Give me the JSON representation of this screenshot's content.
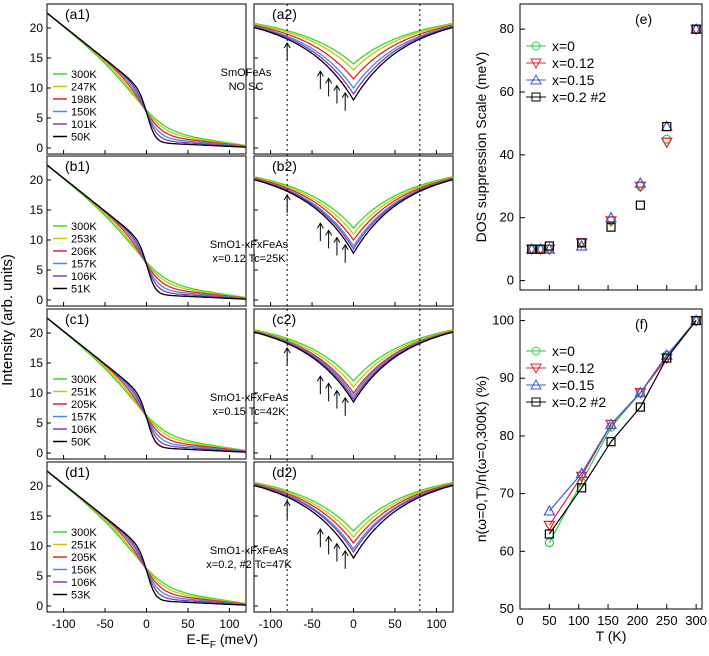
{
  "figure": {
    "y_axis_label": "Intensity (arb. units)",
    "x_axis_label_main": "E-E",
    "x_axis_label_sub": "F",
    "x_axis_label_unit": " (meV)"
  },
  "chart_data": [
    {
      "type": "line",
      "panel": "a1",
      "label": "(a1)",
      "temps": [
        "300K",
        "247K",
        "198K",
        "150K",
        "101K",
        "50K"
      ],
      "sample": [
        "SmOFeAs",
        "NO SC"
      ],
      "ylim": [
        -1,
        24
      ],
      "xlim": [
        -120,
        120
      ],
      "yticks": [
        0,
        5,
        10,
        15,
        20
      ],
      "xticks": [
        -100,
        -50,
        0,
        50,
        100
      ]
    },
    {
      "type": "line",
      "panel": "a2",
      "label": "(a2)",
      "ylim": [
        -1,
        24
      ],
      "xlim": [
        -120,
        120
      ],
      "min_values": [
        14,
        13,
        11.5,
        10,
        9,
        8
      ],
      "arrows_x": [
        -80,
        -40,
        -30,
        -20,
        -10
      ]
    },
    {
      "type": "line",
      "panel": "b1",
      "label": "(b1)",
      "temps": [
        "300K",
        "253K",
        "206K",
        "157K",
        "106K",
        "51K"
      ],
      "sample": [
        "SmO1-xFxFeAs",
        "x=0.12 Tc=25K"
      ],
      "ylim": [
        -1,
        24
      ],
      "xlim": [
        -120,
        120
      ],
      "yticks": [
        0,
        5,
        10,
        15,
        20
      ],
      "xticks": [
        -100,
        -50,
        0,
        50,
        100
      ]
    },
    {
      "type": "line",
      "panel": "b2",
      "label": "(b2)",
      "ylim": [
        -1,
        24
      ],
      "xlim": [
        -120,
        120
      ],
      "min_values": [
        12,
        11,
        10,
        9,
        8.5,
        7.8
      ],
      "arrows_x": [
        -80,
        -40,
        -30,
        -20,
        -10
      ]
    },
    {
      "type": "line",
      "panel": "c1",
      "label": "(c1)",
      "temps": [
        "300K",
        "251K",
        "205K",
        "157K",
        "106K",
        "50K"
      ],
      "sample": [
        "SmO1-xFxFeAs",
        "x=0.15 Tc=42K"
      ],
      "ylim": [
        -1,
        24
      ],
      "xlim": [
        -120,
        120
      ],
      "yticks": [
        0,
        5,
        10,
        15,
        20
      ],
      "xticks": [
        -100,
        -50,
        0,
        50,
        100
      ]
    },
    {
      "type": "line",
      "panel": "c2",
      "label": "(c2)",
      "ylim": [
        -1,
        24
      ],
      "xlim": [
        -120,
        120
      ],
      "min_values": [
        12,
        11,
        10,
        9.5,
        9,
        8.5
      ],
      "arrows_x": [
        -80,
        -40,
        -30,
        -20,
        -10
      ]
    },
    {
      "type": "line",
      "panel": "d1",
      "label": "(d1)",
      "temps": [
        "300K",
        "251K",
        "205K",
        "156K",
        "106K",
        "53K"
      ],
      "sample": [
        "SmO1-xFxFeAs",
        "x=0.2, #2 Tc=47K"
      ],
      "ylim": [
        -1,
        24
      ],
      "xlim": [
        -120,
        120
      ],
      "yticks": [
        0,
        5,
        10,
        15,
        20
      ],
      "xticks": [
        -100,
        -50,
        0,
        50,
        100
      ]
    },
    {
      "type": "line",
      "panel": "d2",
      "label": "(d2)",
      "ylim": [
        -1,
        24
      ],
      "xlim": [
        -120,
        120
      ],
      "min_values": [
        12.5,
        11.5,
        10.5,
        9.5,
        9,
        8
      ],
      "arrows_x": [
        -80,
        -40,
        -30,
        -20,
        -10
      ]
    },
    {
      "type": "scatter",
      "panel": "e",
      "label": "(e)",
      "title": "",
      "xlabel": "T (K)",
      "ylabel": "DOS suppression Scale (meV)",
      "xlim": [
        0,
        310
      ],
      "ylim": [
        -3,
        88
      ],
      "xticks": [
        0,
        50,
        100,
        150,
        200,
        250,
        300
      ],
      "yticks": [
        0,
        20,
        40,
        60,
        80
      ],
      "series": [
        {
          "name": "x=0",
          "marker": "circle",
          "color": "#2ecc40",
          "x": [
            20,
            35,
            50,
            105,
            155,
            205,
            250,
            300
          ],
          "y": [
            10,
            10,
            10,
            12,
            19,
            30,
            45,
            80
          ]
        },
        {
          "name": "x=0.12",
          "marker": "triangle-down",
          "color": "#e8202a",
          "x": [
            20,
            35,
            50,
            105,
            155,
            205,
            250,
            300
          ],
          "y": [
            10,
            10,
            10,
            12,
            19,
            30,
            44,
            80
          ]
        },
        {
          "name": "x=0.15",
          "marker": "triangle-up",
          "color": "#3e5bd9",
          "x": [
            20,
            35,
            50,
            105,
            155,
            205,
            250,
            300
          ],
          "y": [
            10,
            10,
            10,
            11,
            20,
            31,
            49,
            80
          ]
        },
        {
          "name": "x=0.2 #2",
          "marker": "square",
          "color": "#000000",
          "x": [
            20,
            35,
            50,
            105,
            155,
            205,
            250,
            300
          ],
          "y": [
            10,
            10,
            11,
            12,
            17,
            24,
            49,
            80
          ]
        }
      ]
    },
    {
      "type": "line",
      "panel": "f",
      "label": "(f)",
      "xlabel": "T (K)",
      "ylabel": "n(ω=0,T)/n(ω=0,300K) (%)",
      "xlim": [
        0,
        310
      ],
      "ylim": [
        50,
        102
      ],
      "xticks": [
        0,
        50,
        100,
        150,
        200,
        250,
        300
      ],
      "yticks": [
        50,
        60,
        70,
        80,
        90,
        100
      ],
      "series": [
        {
          "name": "x=0",
          "marker": "circle",
          "color": "#2ecc40",
          "x": [
            50,
            105,
            155,
            205,
            250,
            300
          ],
          "y": [
            61.5,
            72,
            81.5,
            87.5,
            94,
            100
          ]
        },
        {
          "name": "x=0.12",
          "marker": "triangle-down",
          "color": "#e8202a",
          "x": [
            50,
            105,
            155,
            205,
            250,
            300
          ],
          "y": [
            64.5,
            73,
            82,
            87.5,
            93.5,
            100
          ]
        },
        {
          "name": "x=0.15",
          "marker": "triangle-up",
          "color": "#3e5bd9",
          "x": [
            50,
            105,
            155,
            205,
            250,
            300
          ],
          "y": [
            67,
            73.5,
            82,
            87.5,
            94,
            100
          ]
        },
        {
          "name": "x=0.2 #2",
          "marker": "square",
          "color": "#000000",
          "x": [
            50,
            105,
            155,
            205,
            250,
            300
          ],
          "y": [
            63,
            71,
            79,
            85,
            93.5,
            100
          ]
        }
      ]
    }
  ],
  "temp_colors": [
    "#33dd22",
    "#c8c800",
    "#e8202a",
    "#3e8ee8",
    "#8a3ab8",
    "#000000"
  ]
}
